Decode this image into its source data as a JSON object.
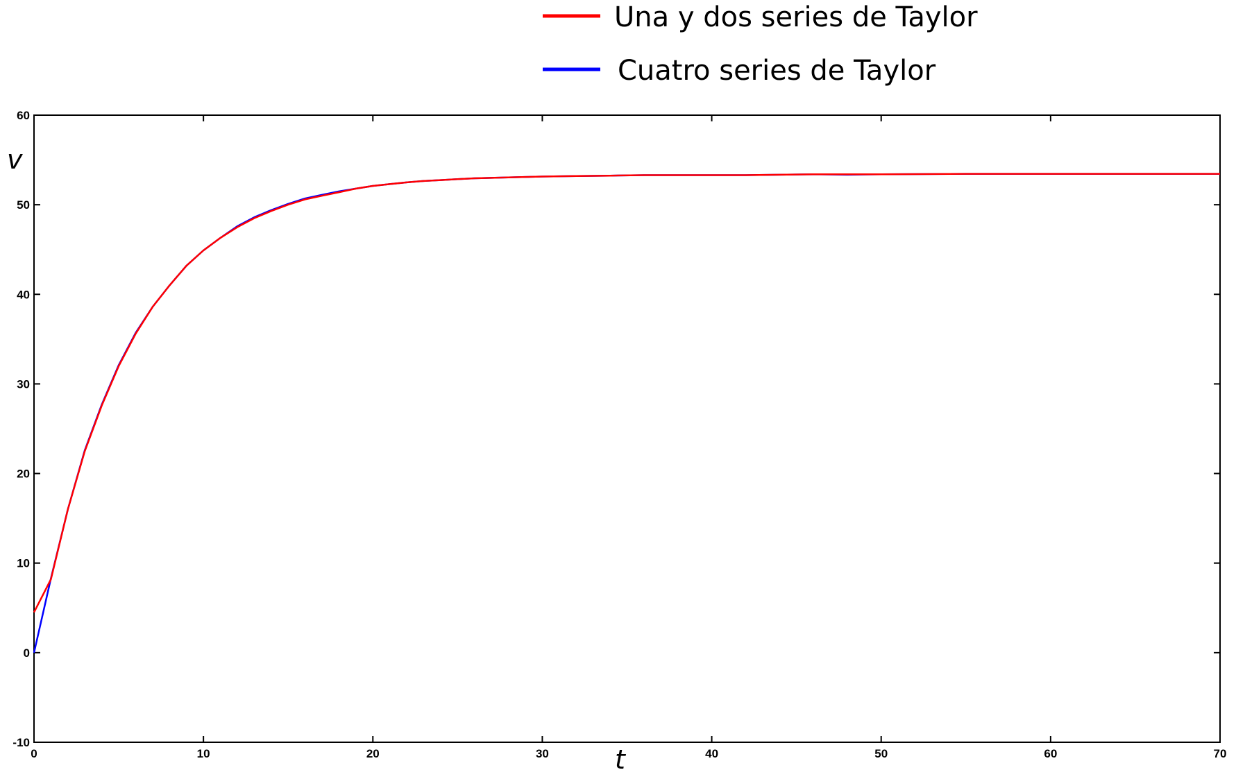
{
  "chart_data": {
    "type": "line",
    "title": "",
    "xlabel": "t",
    "ylabel": "v",
    "xlim": [
      0,
      70
    ],
    "ylim": [
      -10,
      60
    ],
    "x_ticks": [
      0,
      10,
      20,
      30,
      40,
      50,
      60,
      70
    ],
    "y_ticks": [
      -10,
      0,
      10,
      20,
      30,
      40,
      50,
      60
    ],
    "grid": false,
    "legend_position": "top-center",
    "series": [
      {
        "name": "Una y dos series de Taylor",
        "color": "#ff0000",
        "x": [
          0,
          1,
          2,
          3,
          4,
          5,
          6,
          7,
          8,
          9,
          10,
          11,
          12,
          13,
          14,
          15,
          16,
          17,
          18,
          19,
          20,
          21,
          22,
          23,
          24,
          25,
          26,
          27,
          28,
          29,
          30,
          32,
          34,
          36,
          38,
          40,
          42,
          44,
          46,
          48,
          50,
          55,
          60,
          65,
          70
        ],
        "y": [
          4.5,
          8.2,
          16.0,
          22.5,
          27.6,
          32.0,
          35.6,
          38.6,
          41.0,
          43.2,
          44.9,
          46.3,
          47.5,
          48.5,
          49.3,
          50.0,
          50.6,
          51.0,
          51.4,
          51.8,
          52.1,
          52.3,
          52.5,
          52.65,
          52.75,
          52.85,
          52.95,
          53.0,
          53.05,
          53.1,
          53.15,
          53.2,
          53.25,
          53.3,
          53.3,
          53.3,
          53.3,
          53.35,
          53.4,
          53.4,
          53.4,
          53.45,
          53.45,
          53.45,
          53.45
        ]
      },
      {
        "name": "Cuatro series de Taylor",
        "color": "#0000ff",
        "x": [
          0,
          1,
          2,
          3,
          4,
          5,
          6,
          7,
          8,
          9,
          10,
          11,
          12,
          13,
          14,
          15,
          16,
          17,
          18,
          19,
          20,
          21,
          22,
          23,
          24,
          25,
          26,
          27,
          28,
          29,
          30,
          32,
          34,
          36,
          38,
          40,
          42,
          44,
          46,
          48,
          50,
          55,
          60,
          65,
          70
        ],
        "y": [
          0.0,
          8.3,
          16.0,
          22.6,
          27.7,
          32.1,
          35.7,
          38.6,
          41.0,
          43.2,
          44.9,
          46.3,
          47.6,
          48.6,
          49.4,
          50.1,
          50.7,
          51.1,
          51.5,
          51.8,
          52.1,
          52.3,
          52.5,
          52.65,
          52.75,
          52.85,
          52.95,
          53.0,
          53.05,
          53.1,
          53.15,
          53.2,
          53.25,
          53.3,
          53.3,
          53.3,
          53.3,
          53.35,
          53.4,
          53.35,
          53.4,
          53.45,
          53.45,
          53.45,
          53.45
        ]
      }
    ]
  }
}
